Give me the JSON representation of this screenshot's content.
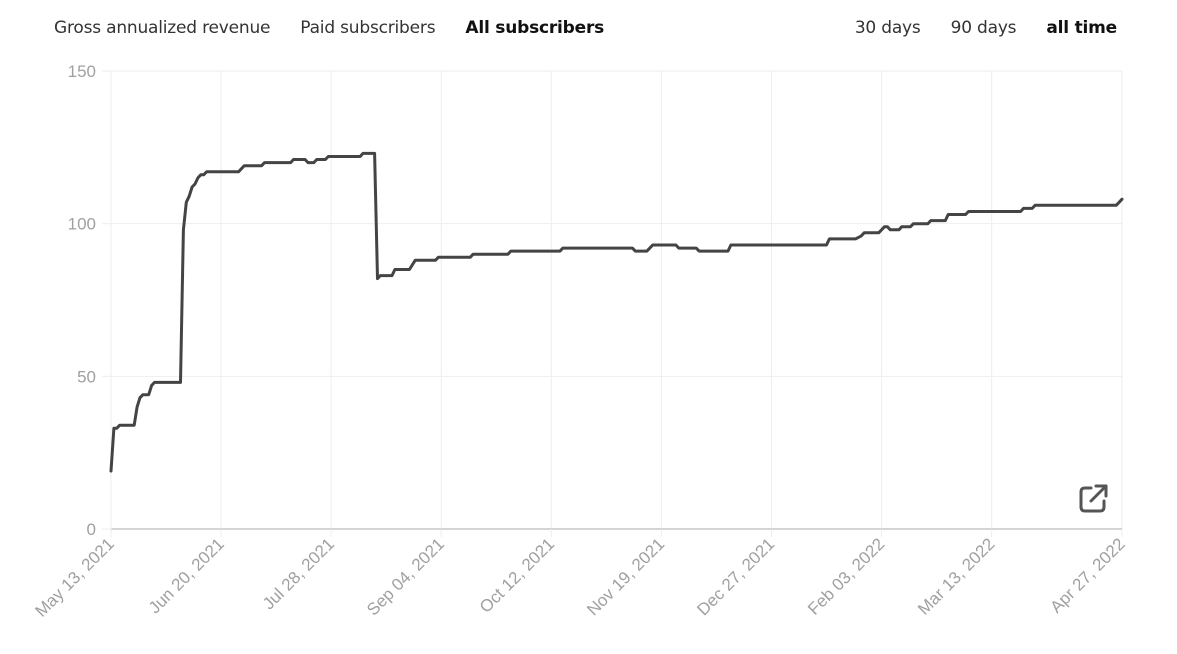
{
  "tabs": {
    "metric": [
      {
        "label": "Gross annualized revenue",
        "active": false
      },
      {
        "label": "Paid subscribers",
        "active": false
      },
      {
        "label": "All subscribers",
        "active": true
      }
    ],
    "range": [
      {
        "label": "30 days",
        "active": false
      },
      {
        "label": "90 days",
        "active": false
      },
      {
        "label": "all time",
        "active": true
      }
    ]
  },
  "export_icon": "external-link-icon",
  "colors": {
    "line": "#444444",
    "grid": "#eeeeee",
    "axis": "#bbbbbb",
    "tick_text": "#a0a0a0"
  },
  "chart_data": {
    "type": "line",
    "title": "",
    "xlabel": "",
    "ylabel": "",
    "ylim": [
      0,
      150
    ],
    "yticks": [
      0,
      50,
      100,
      150
    ],
    "xlim": [
      "2021-05-13",
      "2022-04-27"
    ],
    "xtick_labels": [
      "May 13, 2021",
      "Jun 20, 2021",
      "Jul 28, 2021",
      "Sep 04, 2021",
      "Oct 12, 2021",
      "Nov 19, 2021",
      "Dec 27, 2021",
      "Feb 03, 2022",
      "Mar 13, 2022",
      "Apr 27, 2022"
    ],
    "xtick_dates": [
      "2021-05-13",
      "2021-06-20",
      "2021-07-28",
      "2021-09-04",
      "2021-10-12",
      "2021-11-19",
      "2021-12-27",
      "2022-02-03",
      "2022-03-13",
      "2022-04-27"
    ],
    "grid": true,
    "series": [
      {
        "points": [
          [
            "2021-05-13",
            19
          ],
          [
            "2021-05-14",
            33
          ],
          [
            "2021-05-15",
            33
          ],
          [
            "2021-05-16",
            34
          ],
          [
            "2021-05-21",
            34
          ],
          [
            "2021-05-22",
            40
          ],
          [
            "2021-05-23",
            43
          ],
          [
            "2021-05-24",
            44
          ],
          [
            "2021-05-26",
            44
          ],
          [
            "2021-05-27",
            47
          ],
          [
            "2021-05-28",
            48
          ],
          [
            "2021-06-06",
            48
          ],
          [
            "2021-06-07",
            98
          ],
          [
            "2021-06-08",
            107
          ],
          [
            "2021-06-09",
            109
          ],
          [
            "2021-06-10",
            112
          ],
          [
            "2021-06-11",
            113
          ],
          [
            "2021-06-12",
            115
          ],
          [
            "2021-06-13",
            116
          ],
          [
            "2021-06-14",
            116
          ],
          [
            "2021-06-15",
            117
          ],
          [
            "2021-06-26",
            117
          ],
          [
            "2021-06-28",
            119
          ],
          [
            "2021-07-04",
            119
          ],
          [
            "2021-07-05",
            120
          ],
          [
            "2021-07-14",
            120
          ],
          [
            "2021-07-15",
            121
          ],
          [
            "2021-07-19",
            121
          ],
          [
            "2021-07-20",
            120
          ],
          [
            "2021-07-22",
            120
          ],
          [
            "2021-07-23",
            121
          ],
          [
            "2021-07-26",
            121
          ],
          [
            "2021-07-27",
            122
          ],
          [
            "2021-08-07",
            122
          ],
          [
            "2021-08-08",
            123
          ],
          [
            "2021-08-12",
            123
          ],
          [
            "2021-08-13",
            82
          ],
          [
            "2021-08-14",
            83
          ],
          [
            "2021-08-18",
            83
          ],
          [
            "2021-08-19",
            85
          ],
          [
            "2021-08-24",
            85
          ],
          [
            "2021-08-26",
            88
          ],
          [
            "2021-09-02",
            88
          ],
          [
            "2021-09-03",
            89
          ],
          [
            "2021-09-14",
            89
          ],
          [
            "2021-09-15",
            90
          ],
          [
            "2021-09-27",
            90
          ],
          [
            "2021-09-28",
            91
          ],
          [
            "2021-10-15",
            91
          ],
          [
            "2021-10-16",
            92
          ],
          [
            "2021-11-09",
            92
          ],
          [
            "2021-11-10",
            91
          ],
          [
            "2021-11-14",
            91
          ],
          [
            "2021-11-15",
            92
          ],
          [
            "2021-11-16",
            93
          ],
          [
            "2021-11-24",
            93
          ],
          [
            "2021-11-25",
            92
          ],
          [
            "2021-12-01",
            92
          ],
          [
            "2021-12-02",
            91
          ],
          [
            "2021-12-12",
            91
          ],
          [
            "2021-12-13",
            93
          ],
          [
            "2022-01-15",
            93
          ],
          [
            "2022-01-16",
            95
          ],
          [
            "2022-01-25",
            95
          ],
          [
            "2022-01-27",
            96
          ],
          [
            "2022-01-28",
            97
          ],
          [
            "2022-02-02",
            97
          ],
          [
            "2022-02-03",
            98
          ],
          [
            "2022-02-04",
            99
          ],
          [
            "2022-02-05",
            99
          ],
          [
            "2022-02-06",
            98
          ],
          [
            "2022-02-09",
            98
          ],
          [
            "2022-02-10",
            99
          ],
          [
            "2022-02-13",
            99
          ],
          [
            "2022-02-14",
            100
          ],
          [
            "2022-02-19",
            100
          ],
          [
            "2022-02-20",
            101
          ],
          [
            "2022-02-25",
            101
          ],
          [
            "2022-02-26",
            103
          ],
          [
            "2022-03-04",
            103
          ],
          [
            "2022-03-05",
            104
          ],
          [
            "2022-03-23",
            104
          ],
          [
            "2022-03-24",
            105
          ],
          [
            "2022-03-27",
            105
          ],
          [
            "2022-03-28",
            106
          ],
          [
            "2022-04-25",
            106
          ],
          [
            "2022-04-26",
            107
          ],
          [
            "2022-04-27",
            108
          ]
        ]
      }
    ]
  }
}
